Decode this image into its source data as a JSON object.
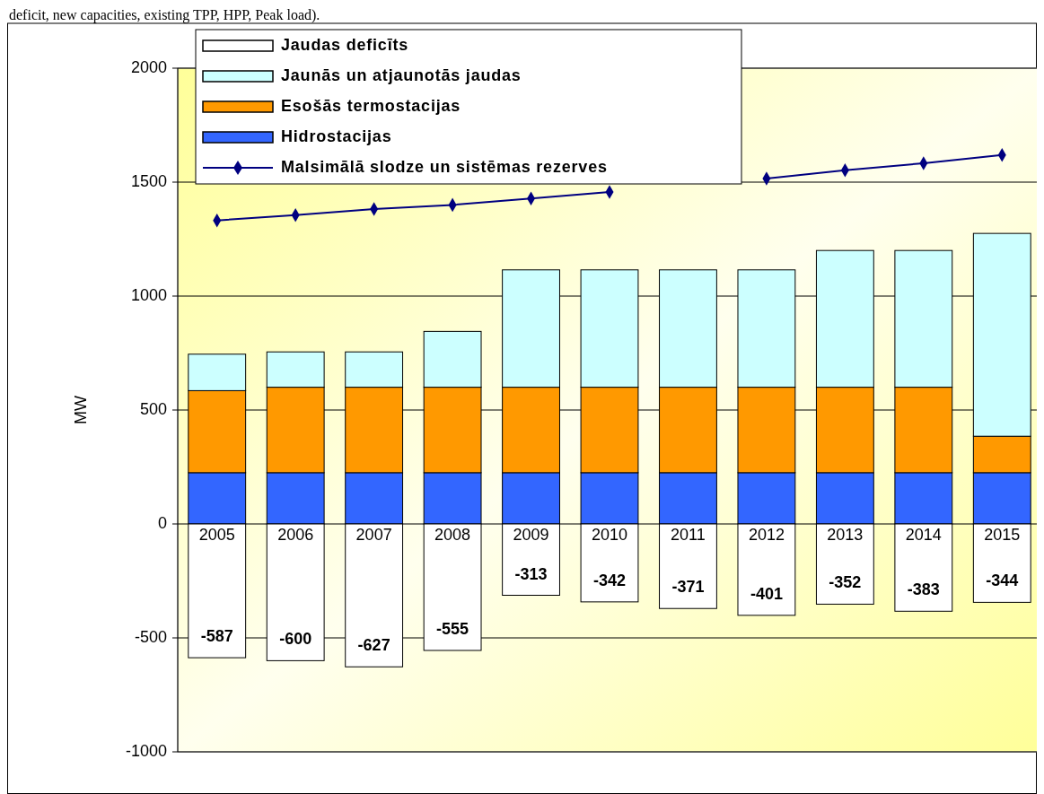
{
  "chart_data": {
    "type": "bar",
    "stacked": true,
    "ylabel": "MW",
    "annotations": [
      "deficit, new capacities, existing TPP, HPP, Peak load)."
    ],
    "categories": [
      "2005",
      "2006",
      "2007",
      "2008",
      "2009",
      "2010",
      "2011",
      "2012",
      "2013",
      "2014",
      "2015"
    ],
    "series": [
      {
        "name": "Hidrostacijas",
        "color": "#3366ff",
        "values": [
          225,
          225,
          225,
          225,
          225,
          225,
          225,
          225,
          225,
          225,
          225
        ]
      },
      {
        "name": "Esošās termostacijas",
        "color": "#ff9900",
        "values": [
          360,
          375,
          375,
          375,
          375,
          375,
          375,
          375,
          375,
          375,
          160
        ]
      },
      {
        "name": "Jaunās un atjaunotās jaudas",
        "color": "#ccffff",
        "values": [
          160,
          155,
          155,
          245,
          515,
          515,
          515,
          515,
          600,
          600,
          890
        ]
      },
      {
        "name": "Jaudas deficīts",
        "color": "#ffffff",
        "values": [
          -587,
          -600,
          -627,
          -555,
          -313,
          -342,
          -371,
          -401,
          -352,
          -383,
          -344
        ],
        "value_labels": [
          "-587",
          "-600",
          "-627",
          "-555",
          "-313",
          "-342",
          "-371",
          "-401",
          "-352",
          "-383",
          "-344"
        ]
      },
      {
        "name": "Malsimālā slodze un sistēmas rezerves",
        "type": "line",
        "color": "#000080",
        "marker": "diamond",
        "values": [
          1332,
          1355,
          1382,
          1400,
          1428,
          1457,
          null,
          1516,
          1552,
          1583,
          1619
        ]
      }
    ],
    "ylim": [
      -1000,
      2000
    ],
    "yticks": [
      -1000,
      -500,
      0,
      500,
      1000,
      1500,
      2000
    ],
    "grid": "y",
    "legend": "top left"
  }
}
